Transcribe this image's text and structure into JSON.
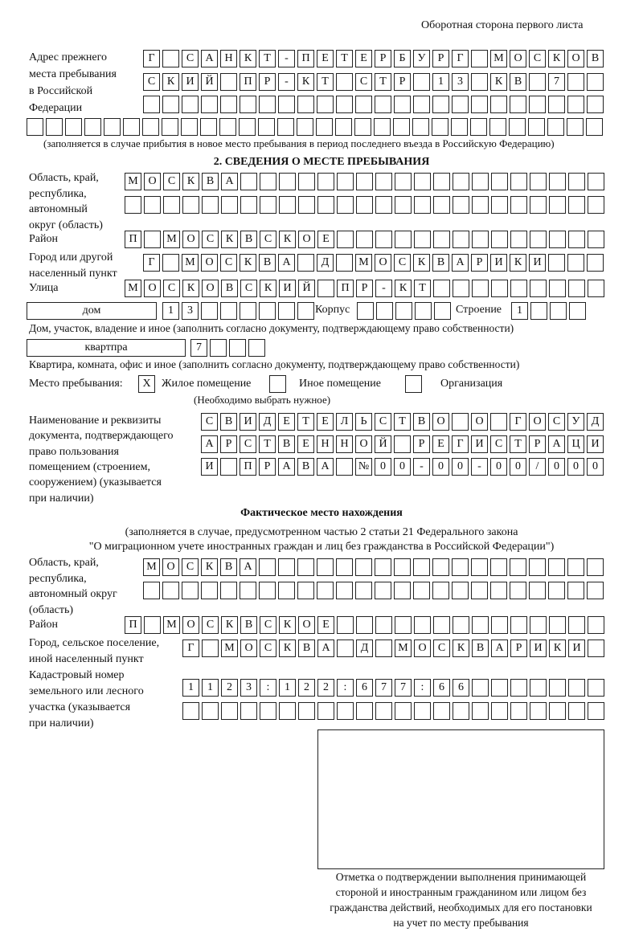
{
  "header": {
    "side_note": "Оборотная сторона первого листа"
  },
  "prev_address": {
    "label": [
      "Адрес прежнего",
      "места пребывания",
      "в Российской",
      "Федерации"
    ],
    "rows": [
      [
        "Г",
        "",
        "С",
        "А",
        "Н",
        "К",
        "Т",
        "-",
        "П",
        "Е",
        "Т",
        "Е",
        "Р",
        "Б",
        "У",
        "Р",
        "Г",
        "",
        "М",
        "О",
        "С",
        "К",
        "О",
        "В"
      ],
      [
        "С",
        "К",
        "И",
        "Й",
        "",
        "П",
        "Р",
        "-",
        "К",
        "Т",
        "",
        "С",
        "Т",
        "Р",
        "",
        "1",
        "3",
        "",
        "К",
        "В",
        "",
        "7",
        "",
        ""
      ],
      [
        "",
        "",
        "",
        "",
        "",
        "",
        "",
        "",
        "",
        "",
        "",
        "",
        "",
        "",
        "",
        "",
        "",
        "",
        "",
        "",
        "",
        "",
        "",
        ""
      ],
      [
        "",
        "",
        "",
        "",
        "",
        "",
        "",
        "",
        "",
        "",
        "",
        "",
        "",
        "",
        "",
        "",
        "",
        "",
        "",
        "",
        "",
        "",
        "",
        "",
        "",
        "",
        "",
        "",
        "",
        ""
      ]
    ],
    "note": "(заполняется в случае прибытия в новое место пребывания в период последнего въезда в Российскую Федерацию)"
  },
  "section2": {
    "title": "2. СВЕДЕНИЯ О МЕСТЕ ПРЕБЫВАНИЯ",
    "region_label": [
      "Область, край,",
      "республика,",
      "автономный",
      "округ (область)"
    ],
    "region_rows": [
      [
        "М",
        "О",
        "С",
        "К",
        "В",
        "А",
        "",
        "",
        "",
        "",
        "",
        "",
        "",
        "",
        "",
        "",
        "",
        "",
        "",
        "",
        "",
        "",
        "",
        "",
        ""
      ],
      [
        "",
        "",
        "",
        "",
        "",
        "",
        "",
        "",
        "",
        "",
        "",
        "",
        "",
        "",
        "",
        "",
        "",
        "",
        "",
        "",
        "",
        "",
        "",
        "",
        ""
      ]
    ],
    "district_label": "Район",
    "district_row": [
      "П",
      "",
      "М",
      "О",
      "С",
      "К",
      "В",
      "С",
      "К",
      "О",
      "Е",
      "",
      "",
      "",
      "",
      "",
      "",
      "",
      "",
      "",
      "",
      "",
      "",
      "",
      ""
    ],
    "city_label": [
      "Город или другой",
      "населенный пункт"
    ],
    "city_row": [
      "Г",
      "",
      "М",
      "О",
      "С",
      "К",
      "В",
      "А",
      "",
      "Д",
      "",
      "М",
      "О",
      "С",
      "К",
      "В",
      "А",
      "Р",
      "И",
      "К",
      "И",
      "",
      "",
      ""
    ],
    "street_label": "Улица",
    "street_row": [
      "М",
      "О",
      "С",
      "К",
      "О",
      "В",
      "С",
      "К",
      "И",
      "Й",
      "",
      "П",
      "Р",
      "-",
      "К",
      "Т",
      "",
      "",
      "",
      "",
      "",
      "",
      "",
      "",
      ""
    ],
    "house_type": "дом",
    "house_cells": [
      "1",
      "3",
      "",
      "",
      "",
      "",
      "",
      ""
    ],
    "building_label": "Корпус",
    "building_cells": [
      "",
      "",
      "",
      "",
      ""
    ],
    "structure_label": "Строение",
    "structure_cells": [
      "1",
      "",
      "",
      ""
    ],
    "house_note": "Дом, участок, владение и иное (заполнить согласно документу, подтверждающему право собственности)",
    "apt_type": "квартпра",
    "apt_cells": [
      "7",
      "",
      "",
      ""
    ],
    "apt_note": "Квартира, комната, офис и иное (заполнить согласно документу, подтверждающему право собственности)",
    "stay_place_label": "Место пребывания:",
    "stay_options": [
      {
        "mark": "X",
        "label": "Жилое помещение"
      },
      {
        "mark": "",
        "label": "Иное помещение"
      },
      {
        "mark": "",
        "label": "Организация"
      }
    ],
    "stay_note": "(Необходимо выбрать нужное)",
    "doc_label": [
      "Наименование и реквизиты",
      "документа, подтверждающего",
      "право пользования",
      "помещением (строением,",
      "сооружением) (указывается",
      "при наличии)"
    ],
    "doc_rows": [
      [
        "С",
        "В",
        "И",
        "Д",
        "Е",
        "Т",
        "Е",
        "Л",
        "Ь",
        "С",
        "Т",
        "В",
        "О",
        "",
        "О",
        "",
        "Г",
        "О",
        "С",
        "У",
        "Д"
      ],
      [
        "А",
        "Р",
        "С",
        "Т",
        "В",
        "Е",
        "Н",
        "Н",
        "О",
        "Й",
        "",
        "Р",
        "Е",
        "Г",
        "И",
        "С",
        "Т",
        "Р",
        "А",
        "Ц",
        "И"
      ],
      [
        "И",
        "",
        "П",
        "Р",
        "А",
        "В",
        "А",
        "",
        "№",
        "0",
        "0",
        "-",
        "0",
        "0",
        "-",
        "0",
        "0",
        "/",
        "0",
        "0",
        "0"
      ]
    ]
  },
  "actual": {
    "title": "Фактическое место нахождения",
    "note": [
      "(заполняется в случае, предусмотренном частью 2 статьи 21 Федерального закона",
      "\"О миграционном учете иностранных граждан и лиц без гражданства в Российской Федерации\")"
    ],
    "region_label": [
      "Область, край,",
      "республика,",
      "автономный округ",
      "(область)"
    ],
    "region_rows": [
      [
        "М",
        "О",
        "С",
        "К",
        "В",
        "А",
        "",
        "",
        "",
        "",
        "",
        "",
        "",
        "",
        "",
        "",
        "",
        "",
        "",
        "",
        "",
        "",
        "",
        ""
      ],
      [
        "",
        "",
        "",
        "",
        "",
        "",
        "",
        "",
        "",
        "",
        "",
        "",
        "",
        "",
        "",
        "",
        "",
        "",
        "",
        "",
        "",
        "",
        "",
        ""
      ]
    ],
    "district_label": "Район",
    "district_row": [
      "П",
      "",
      "М",
      "О",
      "С",
      "К",
      "В",
      "С",
      "К",
      "О",
      "Е",
      "",
      "",
      "",
      "",
      "",
      "",
      "",
      "",
      "",
      "",
      "",
      "",
      "",
      ""
    ],
    "city_label": [
      "Город, сельское поселение,",
      "иной населенный пункт"
    ],
    "city_row": [
      "Г",
      "",
      "М",
      "О",
      "С",
      "К",
      "В",
      "А",
      "",
      "Д",
      "",
      "М",
      "О",
      "С",
      "К",
      "В",
      "А",
      "Р",
      "И",
      "К",
      "И",
      ""
    ],
    "cadastre_label": [
      "Кадастровый номер",
      "земельного или лесного",
      "участка (указывается",
      "при наличии)"
    ],
    "cadastre_rows": [
      [
        "1",
        "1",
        "2",
        "3",
        ":",
        "1",
        "2",
        "2",
        ":",
        "6",
        "7",
        "7",
        ":",
        "6",
        "6",
        "",
        "",
        "",
        "",
        "",
        "",
        ""
      ],
      [
        "",
        "",
        "",
        "",
        "",
        "",
        "",
        "",
        "",
        "",
        "",
        "",
        "",
        "",
        "",
        "",
        "",
        "",
        "",
        "",
        "",
        ""
      ]
    ]
  },
  "stamp_box": {
    "caption": [
      "Отметка о подтверждении выполнения принимающей",
      "стороной и иностранным гражданином или лицом без",
      "гражданства действий, необходимых для его постановки",
      "на учет по месту пребывания"
    ]
  }
}
